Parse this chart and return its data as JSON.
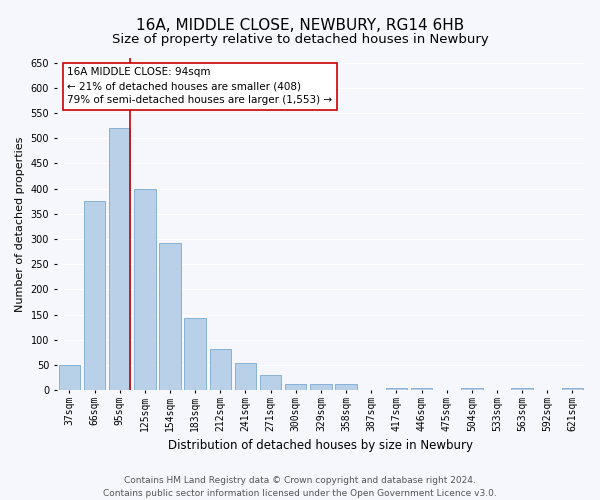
{
  "title": "16A, MIDDLE CLOSE, NEWBURY, RG14 6HB",
  "subtitle": "Size of property relative to detached houses in Newbury",
  "xlabel": "Distribution of detached houses by size in Newbury",
  "ylabel": "Number of detached properties",
  "footer_line1": "Contains HM Land Registry data © Crown copyright and database right 2024.",
  "footer_line2": "Contains public sector information licensed under the Open Government Licence v3.0.",
  "categories": [
    "37sqm",
    "66sqm",
    "95sqm",
    "125sqm",
    "154sqm",
    "183sqm",
    "212sqm",
    "241sqm",
    "271sqm",
    "300sqm",
    "329sqm",
    "358sqm",
    "387sqm",
    "417sqm",
    "446sqm",
    "475sqm",
    "504sqm",
    "533sqm",
    "563sqm",
    "592sqm",
    "621sqm"
  ],
  "values": [
    50,
    375,
    520,
    400,
    292,
    143,
    82,
    55,
    30,
    12,
    12,
    12,
    0,
    5,
    5,
    0,
    5,
    0,
    5,
    0,
    5
  ],
  "bar_color": "#b8d0e8",
  "bar_edge_color": "#7aaad0",
  "vline_bar_index": 2,
  "vline_color": "#cc0000",
  "annotation_line1": "16A MIDDLE CLOSE: 94sqm",
  "annotation_line2": "← 21% of detached houses are smaller (408)",
  "annotation_line3": "79% of semi-detached houses are larger (1,553) →",
  "annotation_box_color": "#cc0000",
  "ylim": [
    0,
    660
  ],
  "yticks": [
    0,
    50,
    100,
    150,
    200,
    250,
    300,
    350,
    400,
    450,
    500,
    550,
    600,
    650
  ],
  "bg_color": "#f5f7fc",
  "plot_bg_color": "#f5f7fc",
  "grid_color": "#ffffff",
  "title_fontsize": 11,
  "subtitle_fontsize": 9.5,
  "axis_label_fontsize": 8,
  "tick_fontsize": 7,
  "annotation_fontsize": 7.5,
  "footer_fontsize": 6.5
}
